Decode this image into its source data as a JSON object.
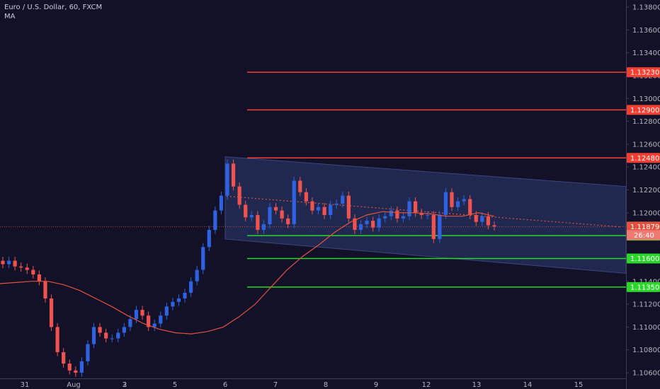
{
  "legend": {
    "title": "Euro / U.S. Dollar, 60, FXCM",
    "indicator": "MA"
  },
  "colors": {
    "background": "#131128",
    "up": "#2f62e0",
    "down": "#ef5350",
    "ma": "#e0523f",
    "resistance": "#f23f32",
    "support": "#2bd62b",
    "channel": "#26305e",
    "axis_text": "#b2b5be",
    "price_line": "#e0523f"
  },
  "chart_data": {
    "type": "candlestick",
    "symbol": "EURUSD",
    "timeframe": "60",
    "x_ticks": [
      "31",
      "Aug",
      "2",
      "3",
      "5",
      "6",
      "7",
      "8",
      "9",
      "12",
      "13",
      "14",
      "15"
    ],
    "y_ticks": [
      "1.13800",
      "1.13600",
      "1.13400",
      "1.13200",
      "1.13000",
      "1.12800",
      "1.12600",
      "1.12400",
      "1.12200",
      "1.12000",
      "1.11800",
      "1.11600",
      "1.11400",
      "1.11200",
      "1.11000",
      "1.10800",
      "1.10600"
    ],
    "ylim": [
      1.1055,
      1.1395
    ],
    "last_price": "1.11879",
    "countdown": "26:40",
    "horizontal_lines": [
      {
        "value": 1.1323,
        "label": "1.13230",
        "kind": "resistance"
      },
      {
        "value": 1.129,
        "label": "1.12900",
        "kind": "resistance"
      },
      {
        "value": 1.1248,
        "label": "1.12480",
        "kind": "resistance"
      },
      {
        "value": 1.118,
        "label": "1.11800",
        "kind": "support"
      },
      {
        "value": 1.116,
        "label": "1.11600",
        "kind": "support"
      },
      {
        "value": 1.1135,
        "label": "1.11350",
        "kind": "support"
      }
    ],
    "channel": {
      "upper": [
        [
          "6",
          1.1249
        ],
        [
          "15+",
          1.1223
        ]
      ],
      "lower": [
        [
          "6",
          1.1177
        ],
        [
          "15+",
          1.1147
        ]
      ]
    },
    "series": [
      {
        "name": "close",
        "values": [
          1.1155,
          1.1158,
          1.1153,
          1.1152,
          1.115,
          1.1146,
          1.114,
          1.1125,
          1.11,
          1.1078,
          1.1068,
          1.1062,
          1.106,
          1.107,
          1.1085,
          1.11,
          1.1095,
          1.109,
          1.109,
          1.1095,
          1.11,
          1.1107,
          1.1115,
          1.111,
          1.11,
          1.1103,
          1.111,
          1.1118,
          1.1122,
          1.1125,
          1.113,
          1.114,
          1.115,
          1.117,
          1.1185,
          1.1202,
          1.1215,
          1.1243,
          1.1223,
          1.1207,
          1.1196,
          1.1198,
          1.1185,
          1.119,
          1.1205,
          1.1202,
          1.1195,
          1.119,
          1.1228,
          1.1218,
          1.121,
          1.1202,
          1.1205,
          1.1198,
          1.1207,
          1.1208,
          1.1215,
          1.1195,
          1.1185,
          1.119,
          1.1193,
          1.1187,
          1.1195,
          1.1197,
          1.1202,
          1.1195,
          1.1197,
          1.121,
          1.12,
          1.1198,
          1.1198,
          1.1177,
          1.1198,
          1.1218,
          1.1205,
          1.121,
          1.1212,
          1.1198,
          1.1192,
          1.1197,
          1.1189,
          1.1188
        ]
      },
      {
        "name": "MA",
        "values": [
          1.1138,
          1.1139,
          1.114,
          1.114,
          1.1137,
          1.1132,
          1.1125,
          1.1118,
          1.111,
          1.1103,
          1.1098,
          1.1095,
          1.1094,
          1.1096,
          1.11,
          1.1109,
          1.112,
          1.1135,
          1.115,
          1.1162,
          1.1172,
          1.1183,
          1.1192,
          1.1198,
          1.1201,
          1.12,
          1.12,
          1.1199,
          1.1197,
          1.1197,
          1.12,
          1.1197
        ]
      }
    ]
  }
}
